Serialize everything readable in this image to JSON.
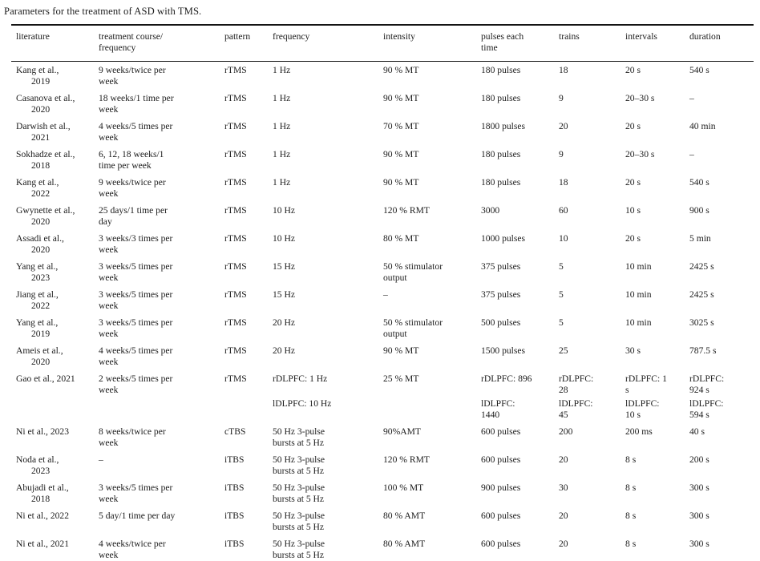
{
  "title": "Parameters for the treatment of ASD with TMS.",
  "table": {
    "columns": [
      {
        "key": "literature",
        "label": "literature"
      },
      {
        "key": "treatment",
        "label": "treatment course/\nfrequency"
      },
      {
        "key": "pattern",
        "label": "pattern"
      },
      {
        "key": "frequency",
        "label": "frequency"
      },
      {
        "key": "intensity",
        "label": "intensity"
      },
      {
        "key": "pulses",
        "label": "pulses each\ntime"
      },
      {
        "key": "trains",
        "label": "trains"
      },
      {
        "key": "intervals",
        "label": "intervals"
      },
      {
        "key": "duration",
        "label": "duration"
      }
    ],
    "rows": [
      [
        "Kang et al.,\n2019",
        "9 weeks/twice per\nweek",
        "rTMS",
        "1 Hz",
        "90 % MT",
        "180 pulses",
        "18",
        "20 s",
        "540 s"
      ],
      [
        "Casanova et al.,\n2020",
        "18 weeks/1 time per\nweek",
        "rTMS",
        "1 Hz",
        "90 % MT",
        "180 pulses",
        "9",
        "20–30 s",
        "–"
      ],
      [
        "Darwish et al.,\n2021",
        "4 weeks/5 times per\nweek",
        "rTMS",
        "1 Hz",
        "70 % MT",
        "1800 pulses",
        "20",
        "20 s",
        "40 min"
      ],
      [
        "Sokhadze et al.,\n2018",
        "6, 12, 18 weeks/1\ntime per week",
        "rTMS",
        "1 Hz",
        "90 % MT",
        "180 pulses",
        "9",
        "20–30 s",
        "–"
      ],
      [
        "Kang et al.,\n2022",
        "9 weeks/twice per\nweek",
        "rTMS",
        "1 Hz",
        "90 % MT",
        "180 pulses",
        "18",
        "20 s",
        "540 s"
      ],
      [
        "Gwynette et al.,\n2020",
        "25 days/1 time per\nday",
        "rTMS",
        "10 Hz",
        "120 % RMT",
        "3000",
        "60",
        "10 s",
        "900 s"
      ],
      [
        "Assadi et al.,\n2020",
        "3 weeks/3 times per\nweek",
        "rTMS",
        "10 Hz",
        "80 % MT",
        "1000 pulses",
        "10",
        "20 s",
        "5 min"
      ],
      [
        "Yang et al.,\n2023",
        "3 weeks/5 times per\nweek",
        "rTMS",
        "15 Hz",
        "50 % stimulator\noutput",
        "375 pulses",
        "5",
        "10 min",
        "2425 s"
      ],
      [
        "Jiang et al.,\n2022",
        "3 weeks/5 times per\nweek",
        "rTMS",
        "15 Hz",
        "–",
        "375 pulses",
        "5",
        "10 min",
        "2425 s"
      ],
      [
        "Yang et al.,\n2019",
        "3 weeks/5 times per\nweek",
        "rTMS",
        "20 Hz",
        "50 % stimulator\noutput",
        "500 pulses",
        "5",
        "10 min",
        "3025 s"
      ],
      [
        "Ameis et al.,\n2020",
        "4 weeks/5 times per\nweek",
        "rTMS",
        "20 Hz",
        "90 % MT",
        "1500 pulses",
        "25",
        "30 s",
        "787.5 s"
      ],
      [
        "Gao et al., 2021",
        "2 weeks/5 times per\nweek",
        "rTMS",
        [
          "rDLPFC: 1 Hz",
          "lDLPFC: 10 Hz"
        ],
        "25 % MT",
        [
          "rDLPFC: 896",
          "lDLPFC:\n1440"
        ],
        [
          "rDLPFC:\n28",
          "lDLPFC:\n45"
        ],
        [
          "rDLPFC: 1\ns",
          "lDLPFC:\n10 s"
        ],
        [
          "rDLPFC:\n924 s",
          "lDLPFC:\n594 s"
        ]
      ],
      [
        "Ni et al., 2023",
        "8 weeks/twice per\nweek",
        "cTBS",
        "50 Hz 3-pulse\nbursts at 5 Hz",
        "90%AMT",
        "600 pulses",
        "200",
        "200 ms",
        "40 s"
      ],
      [
        "Noda et al.,\n2023",
        "–",
        "iTBS",
        "50 Hz 3-pulse\nbursts at 5 Hz",
        "120 % RMT",
        "600 pulses",
        "20",
        "8 s",
        "200 s"
      ],
      [
        "Abujadi et al.,\n2018",
        "3 weeks/5 times per\nweek",
        "iTBS",
        "50 Hz 3-pulse\nbursts at 5 Hz",
        "100 % MT",
        "900 pulses",
        "30",
        "8 s",
        "300 s"
      ],
      [
        "Ni et al., 2022",
        "5 day/1 time per day",
        "iTBS",
        "50 Hz 3-pulse\nbursts at 5 Hz",
        "80 % AMT",
        "600 pulses",
        "20",
        "8 s",
        "300 s"
      ],
      [
        "Ni et al., 2021",
        "4 weeks/twice per\nweek",
        "iTBS",
        "50 Hz 3-pulse\nbursts at 5 Hz",
        "80 % AMT",
        "600 pulses",
        "20",
        "8 s",
        "300 s"
      ]
    ]
  }
}
